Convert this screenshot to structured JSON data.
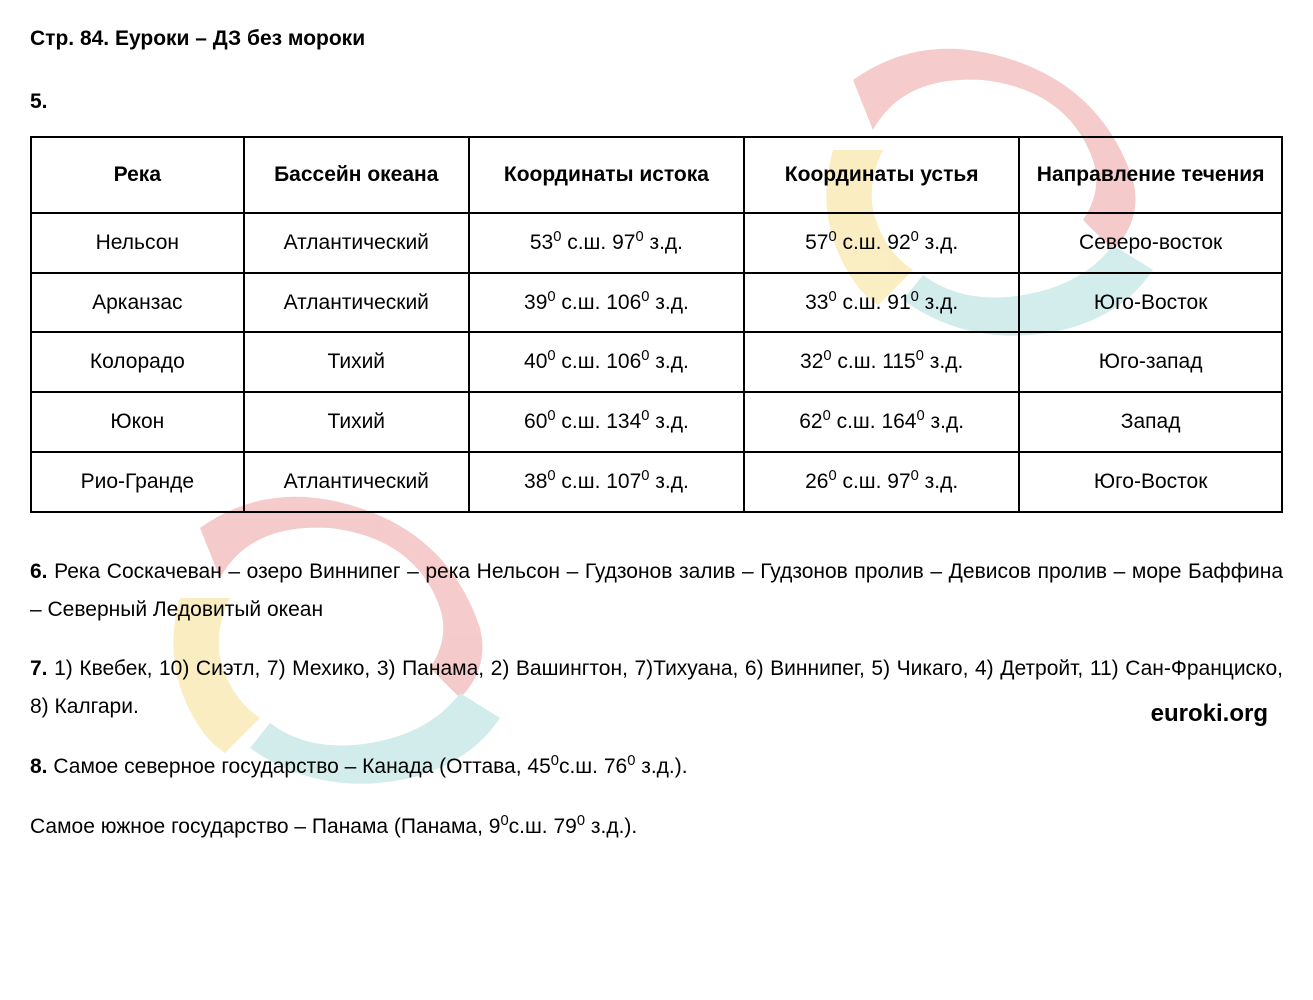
{
  "page": {
    "header": "Стр. 84. Еуроки – ДЗ без мороки",
    "brand": "euroki.org"
  },
  "watermark": {
    "colors": {
      "red": "#e88b8b",
      "yellow": "#f5d97a",
      "teal": "#9dd6d6",
      "opacity": 0.5
    }
  },
  "section5": {
    "number": "5.",
    "table": {
      "columns": [
        "Река",
        "Бассейн океана",
        "Координаты истока",
        "Координаты устья",
        "Направление течения"
      ],
      "rows": [
        {
          "river": "Нельсон",
          "basin": "Атлантический",
          "source_lat": "53",
          "source_lat_dir": "с.ш.",
          "source_lon": "97",
          "source_lon_dir": "з.д.",
          "mouth_lat": "57",
          "mouth_lat_dir": "с.ш.",
          "mouth_lon": "92",
          "mouth_lon_dir": "з.д.",
          "direction": "Северо-восток"
        },
        {
          "river": "Арканзас",
          "basin": "Атлантический",
          "source_lat": "39",
          "source_lat_dir": "с.ш.",
          "source_lon": "106",
          "source_lon_dir": "з.д.",
          "mouth_lat": "33",
          "mouth_lat_dir": "с.ш.",
          "mouth_lon": "91",
          "mouth_lon_dir": "з.д.",
          "direction": "Юго-Восток"
        },
        {
          "river": "Колорадо",
          "basin": "Тихий",
          "source_lat": "40",
          "source_lat_dir": "с.ш.",
          "source_lon": "106",
          "source_lon_dir": "з.д.",
          "mouth_lat": "32",
          "mouth_lat_dir": "с.ш.",
          "mouth_lon": "115",
          "mouth_lon_dir": "з.д.",
          "direction": "Юго-запад"
        },
        {
          "river": "Юкон",
          "basin": "Тихий",
          "source_lat": "60",
          "source_lat_dir": "с.ш.",
          "source_lon": "134",
          "source_lon_dir": "з.д.",
          "mouth_lat": "62",
          "mouth_lat_dir": "с.ш.",
          "mouth_lon": "164",
          "mouth_lon_dir": "з.д.",
          "direction": "Запад"
        },
        {
          "river": "Рио-Гранде",
          "basin": "Атлантический",
          "source_lat": "38",
          "source_lat_dir": "с.ш.",
          "source_lon": "107",
          "source_lon_dir": "з.д.",
          "mouth_lat": "26",
          "mouth_lat_dir": "с.ш.",
          "mouth_lon": "97",
          "mouth_lon_dir": "з.д.",
          "direction": "Юго-Восток"
        }
      ]
    }
  },
  "section6": {
    "number": "6.",
    "text": "Река Соскачеван – озеро Виннипег – река Нельсон – Гудзонов залив – Гудзонов пролив – Девисов пролив – море Баффина – Северный Ледовитый океан"
  },
  "section7": {
    "number": "7.",
    "text": "1) Квебек, 10) Сиэтл, 7) Мехико, 3) Панама, 2) Вашингтон, 7)Тихуана, 6) Виннипег, 5) Чикаго, 4) Детройт, 11) Сан-Франциско, 8) Калгари."
  },
  "section8": {
    "number": "8.",
    "line1_prefix": "Самое северное государство – Канада (Оттава, ",
    "line1_lat": "45",
    "line1_lat_dir": "с.ш.",
    "line1_lon": "76",
    "line1_lon_dir": "з.д.",
    "line1_suffix": ").",
    "line2_prefix": "Самое южное государство – Панама (Панама, ",
    "line2_lat": "9",
    "line2_lat_dir": "с.ш.",
    "line2_lon": "79",
    "line2_lon_dir": "з.д.",
    "line2_suffix": ")."
  }
}
